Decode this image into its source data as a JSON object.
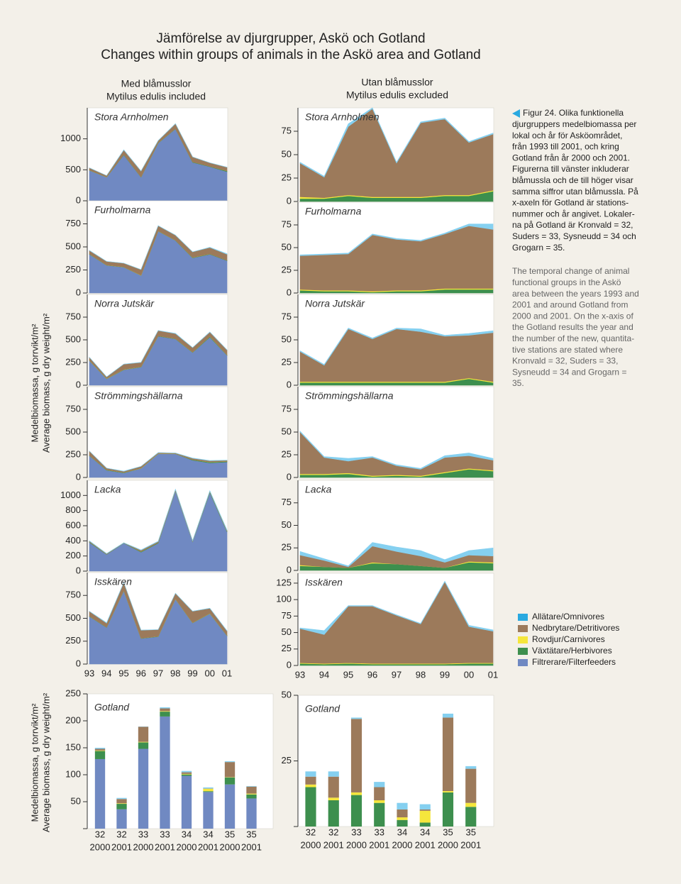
{
  "title": [
    "Jämförelse av djurgrupper, Askö och Gotland",
    "Changes within groups of animals in the Askö area and Gotland"
  ],
  "columns": [
    {
      "title": "Med blåmusslor",
      "subtitle": "Mytilus edulis included"
    },
    {
      "title": "Utan blåmusslor",
      "subtitle": "Mytilus edulis excluded"
    }
  ],
  "y_axis_label": [
    "Medelbiomassa, g torrvikt/m²",
    "Average biomass, g dry weight/m²"
  ],
  "years": [
    "93",
    "94",
    "95",
    "96",
    "97",
    "98",
    "99",
    "00",
    "01"
  ],
  "gotland_x": {
    "stations": [
      "32",
      "32",
      "33",
      "33",
      "34",
      "34",
      "35",
      "35"
    ],
    "years": [
      "2000",
      "2001",
      "2000",
      "2001",
      "2000",
      "2001",
      "2000",
      "2001"
    ]
  },
  "legend": [
    {
      "name": "Allätare/Omnivores",
      "color": "#29a9e0"
    },
    {
      "name": "Nedbrytare/Detritivores",
      "color": "#9c7a5b"
    },
    {
      "name": "Rovdjur/Carnivores",
      "color": "#f5e63c"
    },
    {
      "name": "Växtätare/Herbivores",
      "color": "#3d8f4e"
    },
    {
      "name": "Filtrerare/Filterfeeders",
      "color": "#7089c2"
    }
  ],
  "caption_sv": [
    "Figur 24. Olika funktionella",
    "djurgruppers medelbiomassa per",
    "lokal och år för Asköområdet,",
    "från 1993 till 2001, och kring",
    "Gotland från år 2000 och 2001.",
    "Figurerna till vänster inkluderar",
    "blåmussla och de till höger visar",
    "samma siffror utan blåmussla. På",
    "x-axeln för Gotland är stations-",
    "nummer och år angivet. Lokaler-",
    "na på Gotland är Kronvald = 32,",
    "Suders = 33, Sysneudd = 34 och",
    "Grogarn = 35."
  ],
  "caption_en": [
    "The temporal change of animal",
    "functional groups in the Askö",
    "area between the years 1993 and",
    "2001 and around Gotland from",
    "2000 and 2001. On the x-axis of",
    "the Gotland results the year and",
    "the number of the new, quantita-",
    "tive stations are stated where",
    "Kronvald = 32, Suders = 33,",
    "Sysneudd = 34 and Grogarn =",
    "35."
  ],
  "chart_data": [
    {
      "type": "area",
      "title": "Stora Arnholmen",
      "ylim": [
        0,
        1500
      ],
      "yticks": [
        0,
        500,
        1000
      ],
      "series": [
        {
          "color": "#7089c2",
          "values": [
            490,
            380,
            740,
            380,
            930,
            1160,
            620,
            550,
            470
          ]
        },
        {
          "color": "#3d8f4e",
          "values": [
            3,
            3,
            6,
            4,
            4,
            4,
            6,
            6,
            11
          ]
        },
        {
          "color": "#f5e63c",
          "values": [
            2,
            1,
            1,
            1,
            1,
            1,
            1,
            1,
            1
          ]
        },
        {
          "color": "#9c7a5b",
          "values": [
            36,
            22,
            73,
            94,
            36,
            79,
            81,
            56,
            60
          ]
        },
        {
          "color": "#85d0f0",
          "values": [
            1,
            1,
            3,
            1,
            1,
            1,
            1,
            1,
            1
          ]
        }
      ]
    },
    {
      "type": "area",
      "title": "Furholmarna",
      "ylim": [
        0,
        1000
      ],
      "yticks": [
        0,
        250,
        500,
        750
      ],
      "series": [
        {
          "color": "#7089c2",
          "values": [
            420,
            300,
            280,
            190,
            670,
            570,
            380,
            420,
            350
          ]
        },
        {
          "color": "#3d8f4e",
          "values": [
            3,
            2,
            2,
            1,
            2,
            2,
            4,
            4,
            4
          ]
        },
        {
          "color": "#f5e63c",
          "values": [
            1,
            1,
            1,
            1,
            1,
            1,
            1,
            1,
            1
          ]
        },
        {
          "color": "#9c7a5b",
          "values": [
            37,
            39,
            40,
            62,
            56,
            54,
            60,
            69,
            65
          ]
        },
        {
          "color": "#85d0f0",
          "values": [
            1,
            1,
            1,
            1,
            1,
            1,
            1,
            2,
            6
          ]
        }
      ]
    },
    {
      "type": "area",
      "title": "Norra Jutskär",
      "ylim": [
        0,
        1000
      ],
      "yticks": [
        0,
        250,
        500,
        750
      ],
      "series": [
        {
          "color": "#7089c2",
          "values": [
            270,
            70,
            170,
            200,
            540,
            510,
            360,
            530,
            330
          ]
        },
        {
          "color": "#3d8f4e",
          "values": [
            3,
            3,
            3,
            3,
            3,
            3,
            3,
            7,
            3
          ]
        },
        {
          "color": "#f5e63c",
          "values": [
            1,
            1,
            1,
            1,
            1,
            1,
            1,
            1,
            1
          ]
        },
        {
          "color": "#9c7a5b",
          "values": [
            33,
            18,
            58,
            47,
            58,
            55,
            50,
            47,
            54
          ]
        },
        {
          "color": "#85d0f0",
          "values": [
            1,
            1,
            1,
            1,
            1,
            3,
            1,
            2,
            2
          ]
        }
      ]
    },
    {
      "type": "area",
      "title": "Strömmingshällarna",
      "ylim": [
        0,
        1000
      ],
      "yticks": [
        0,
        250,
        500,
        750
      ],
      "series": [
        {
          "color": "#7089c2",
          "values": [
            240,
            80,
            50,
            100,
            260,
            260,
            190,
            160,
            170
          ]
        },
        {
          "color": "#3d8f4e",
          "values": [
            3,
            3,
            4,
            1,
            2,
            1,
            5,
            9,
            7
          ]
        },
        {
          "color": "#f5e63c",
          "values": [
            1,
            1,
            1,
            1,
            1,
            1,
            1,
            1,
            1
          ]
        },
        {
          "color": "#9c7a5b",
          "values": [
            46,
            18,
            13,
            20,
            10,
            7,
            16,
            14,
            11
          ]
        },
        {
          "color": "#85d0f0",
          "values": [
            1,
            1,
            3,
            1,
            1,
            1,
            2,
            3,
            2
          ]
        }
      ]
    },
    {
      "type": "area",
      "title": "Lacka",
      "ylim": [
        0,
        1200
      ],
      "yticks": [
        0,
        200,
        400,
        600,
        800,
        1000
      ],
      "series": [
        {
          "color": "#7089c2",
          "values": [
            380,
            220,
            370,
            250,
            370,
            1060,
            390,
            1040,
            520
          ]
        },
        {
          "color": "#3d8f4e",
          "values": [
            5,
            4,
            3,
            8,
            7,
            5,
            3,
            9,
            8
          ]
        },
        {
          "color": "#f5e63c",
          "values": [
            1,
            0,
            0,
            1,
            0,
            0,
            0,
            1,
            1
          ]
        },
        {
          "color": "#9c7a5b",
          "values": [
            11,
            7,
            1,
            18,
            14,
            11,
            6,
            7,
            7
          ]
        },
        {
          "color": "#85d0f0",
          "values": [
            4,
            2,
            1,
            4,
            5,
            6,
            3,
            5,
            9
          ]
        }
      ]
    },
    {
      "type": "area",
      "title": "Isskären",
      "ylim": [
        0,
        1000
      ],
      "yticks": [
        0,
        250,
        500,
        750
      ],
      "series": [
        {
          "color": "#7089c2",
          "values": [
            520,
            400,
            800,
            280,
            300,
            710,
            450,
            550,
            310
          ]
        },
        {
          "color": "#3d8f4e",
          "values": [
            3,
            2,
            3,
            2,
            2,
            2,
            2,
            3,
            3
          ]
        },
        {
          "color": "#f5e63c",
          "values": [
            1,
            1,
            1,
            1,
            1,
            1,
            1,
            1,
            1
          ]
        },
        {
          "color": "#9c7a5b",
          "values": [
            52,
            44,
            86,
            87,
            73,
            60,
            124,
            55,
            48
          ]
        },
        {
          "color": "#85d0f0",
          "values": [
            1,
            6,
            1,
            1,
            1,
            1,
            1,
            2,
            2
          ]
        }
      ]
    },
    {
      "type": "area",
      "title": "Stora Arnholmen",
      "ylim": [
        0,
        100
      ],
      "yticks": [
        0,
        25,
        50,
        75
      ],
      "series": [
        {
          "color": "#3d8f4e",
          "values": [
            3,
            3,
            6,
            4,
            4,
            4,
            6,
            6,
            11
          ]
        },
        {
          "color": "#f5e63c",
          "values": [
            2,
            1,
            1,
            1,
            1,
            1,
            1,
            1,
            1
          ]
        },
        {
          "color": "#9c7a5b",
          "values": [
            36,
            22,
            73,
            94,
            36,
            79,
            81,
            56,
            60
          ]
        },
        {
          "color": "#85d0f0",
          "values": [
            1,
            1,
            3,
            1,
            1,
            1,
            1,
            1,
            1
          ]
        }
      ]
    },
    {
      "type": "area",
      "title": "Furholmarna",
      "ylim": [
        0,
        100
      ],
      "yticks": [
        0,
        25,
        50,
        75
      ],
      "series": [
        {
          "color": "#3d8f4e",
          "values": [
            3,
            2,
            2,
            1,
            2,
            2,
            4,
            4,
            4
          ]
        },
        {
          "color": "#f5e63c",
          "values": [
            1,
            1,
            1,
            1,
            1,
            1,
            1,
            1,
            1
          ]
        },
        {
          "color": "#9c7a5b",
          "values": [
            37,
            39,
            40,
            62,
            56,
            54,
            60,
            69,
            65
          ]
        },
        {
          "color": "#85d0f0",
          "values": [
            1,
            1,
            1,
            1,
            1,
            1,
            1,
            2,
            6
          ]
        }
      ]
    },
    {
      "type": "area",
      "title": "Norra Jutskär",
      "ylim": [
        0,
        100
      ],
      "yticks": [
        0,
        25,
        50,
        75
      ],
      "series": [
        {
          "color": "#3d8f4e",
          "values": [
            3,
            3,
            3,
            3,
            3,
            3,
            3,
            7,
            3
          ]
        },
        {
          "color": "#f5e63c",
          "values": [
            1,
            1,
            1,
            1,
            1,
            1,
            1,
            1,
            1
          ]
        },
        {
          "color": "#9c7a5b",
          "values": [
            33,
            18,
            58,
            47,
            58,
            55,
            50,
            47,
            54
          ]
        },
        {
          "color": "#85d0f0",
          "values": [
            1,
            1,
            1,
            1,
            1,
            3,
            1,
            2,
            2
          ]
        }
      ]
    },
    {
      "type": "area",
      "title": "Strömmingshällarna",
      "ylim": [
        0,
        100
      ],
      "yticks": [
        0,
        25,
        50,
        75
      ],
      "series": [
        {
          "color": "#3d8f4e",
          "values": [
            3,
            3,
            4,
            1,
            2,
            1,
            5,
            9,
            7
          ]
        },
        {
          "color": "#f5e63c",
          "values": [
            1,
            1,
            1,
            1,
            1,
            1,
            1,
            1,
            1
          ]
        },
        {
          "color": "#9c7a5b",
          "values": [
            46,
            18,
            13,
            20,
            10,
            7,
            16,
            14,
            11
          ]
        },
        {
          "color": "#85d0f0",
          "values": [
            1,
            1,
            3,
            1,
            1,
            1,
            2,
            3,
            2
          ]
        }
      ]
    },
    {
      "type": "area",
      "title": "Lacka",
      "ylim": [
        0,
        100
      ],
      "yticks": [
        0,
        25,
        50,
        75
      ],
      "series": [
        {
          "color": "#3d8f4e",
          "values": [
            5,
            4,
            3,
            8,
            7,
            5,
            3,
            9,
            8
          ]
        },
        {
          "color": "#f5e63c",
          "values": [
            1,
            0,
            0,
            1,
            0,
            0,
            0,
            1,
            1
          ]
        },
        {
          "color": "#9c7a5b",
          "values": [
            11,
            7,
            1,
            18,
            14,
            11,
            6,
            7,
            7
          ]
        },
        {
          "color": "#85d0f0",
          "values": [
            4,
            2,
            1,
            4,
            5,
            6,
            3,
            5,
            9
          ]
        }
      ]
    },
    {
      "type": "area",
      "title": "Isskären",
      "ylim": [
        0,
        140
      ],
      "yticks": [
        0,
        25,
        50,
        75,
        100,
        125
      ],
      "series": [
        {
          "color": "#3d8f4e",
          "values": [
            3,
            2,
            3,
            2,
            2,
            2,
            2,
            3,
            3
          ]
        },
        {
          "color": "#f5e63c",
          "values": [
            1,
            1,
            1,
            1,
            1,
            1,
            1,
            1,
            1
          ]
        },
        {
          "color": "#9c7a5b",
          "values": [
            52,
            44,
            86,
            87,
            73,
            60,
            124,
            55,
            48
          ]
        },
        {
          "color": "#85d0f0",
          "values": [
            1,
            6,
            1,
            1,
            1,
            1,
            1,
            2,
            2
          ]
        }
      ]
    },
    {
      "type": "bar",
      "title": "Gotland",
      "ylim": [
        0,
        250
      ],
      "yticks": [
        50,
        100,
        150,
        200,
        250
      ],
      "series": [
        {
          "color": "#7089c2",
          "values": [
            129,
            36,
            148,
            208,
            98,
            68,
            82,
            56
          ]
        },
        {
          "color": "#3d8f4e",
          "values": [
            15,
            10,
            12,
            9,
            2.5,
            1.5,
            13,
            7.5
          ]
        },
        {
          "color": "#f5e63c",
          "values": [
            1,
            1,
            1,
            1,
            1,
            4.5,
            0.5,
            1.5
          ]
        },
        {
          "color": "#9c7a5b",
          "values": [
            3,
            8,
            28,
            5,
            3,
            0.5,
            28,
            13
          ]
        },
        {
          "color": "#85d0f0",
          "values": [
            2,
            2,
            0.5,
            2,
            2.5,
            2,
            1.5,
            1
          ]
        }
      ]
    },
    {
      "type": "bar",
      "title": "Gotland",
      "ylim": [
        0,
        50
      ],
      "yticks": [
        25,
        50
      ],
      "series": [
        {
          "color": "#3d8f4e",
          "values": [
            15,
            10,
            12,
            9,
            2.5,
            1.5,
            13,
            7.5
          ]
        },
        {
          "color": "#f5e63c",
          "values": [
            1,
            1,
            1,
            1,
            1,
            4.5,
            0.5,
            1.5
          ]
        },
        {
          "color": "#9c7a5b",
          "values": [
            3,
            8,
            28,
            5,
            3,
            0.5,
            28,
            13
          ]
        },
        {
          "color": "#85d0f0",
          "values": [
            2,
            2,
            0.5,
            2,
            2.5,
            2,
            1.5,
            1
          ]
        }
      ]
    }
  ]
}
